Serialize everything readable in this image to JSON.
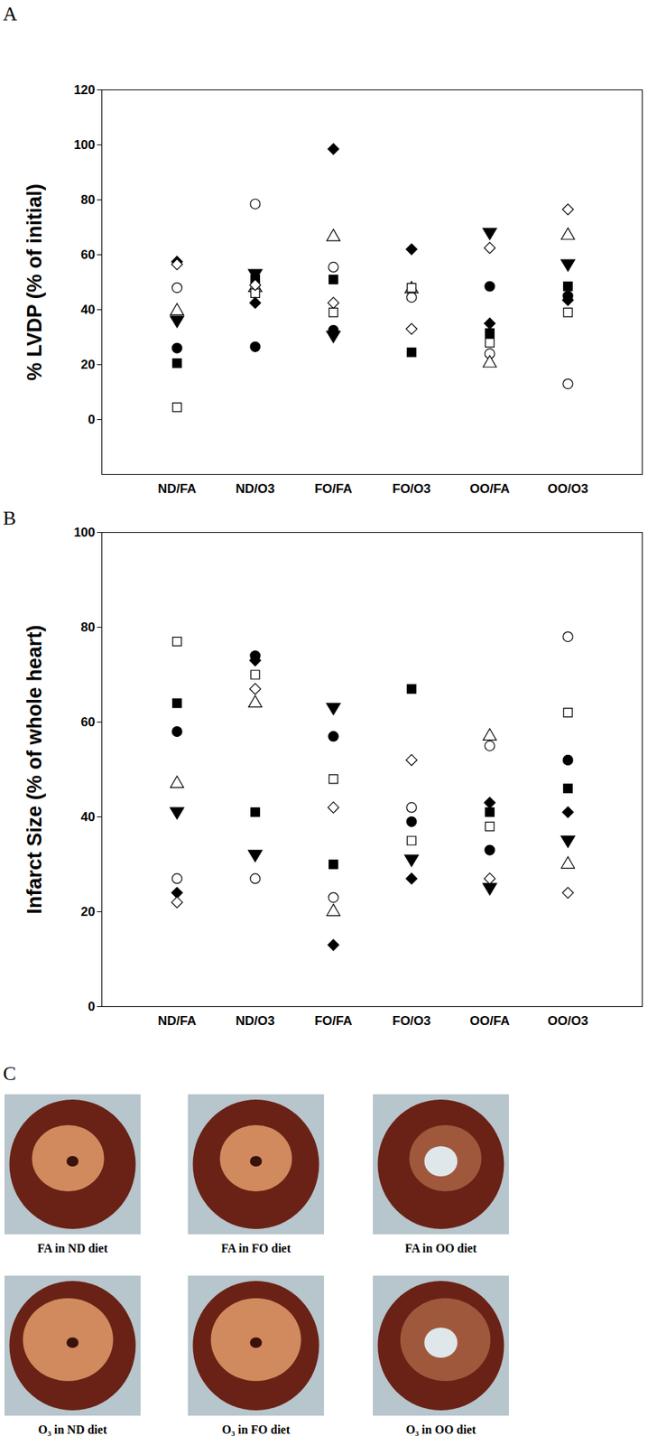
{
  "chart_data": [
    {
      "type": "scatter",
      "title": "A",
      "y_label": "% LVDP (% of initial)",
      "categories": [
        "ND/FA",
        "ND/O3",
        "FO/FA",
        "FO/O3",
        "OO/FA",
        "OO/O3"
      ],
      "ylim": [
        -20,
        120
      ],
      "yticks": [
        0,
        20,
        40,
        60,
        80,
        100,
        120
      ],
      "series": [
        {
          "marker": "filled circle",
          "color": "#000000",
          "values": [
            26,
            26.5,
            32.5,
            null,
            48.5,
            45
          ]
        },
        {
          "marker": "open circle",
          "color": "#000000",
          "values": [
            48,
            78.5,
            55.5,
            44.5,
            24,
            13
          ]
        },
        {
          "marker": "filled triangle-down",
          "color": "#000000",
          "values": [
            36,
            53,
            30.5,
            null,
            68,
            56.5
          ]
        },
        {
          "marker": "open triangle",
          "color": "#000000",
          "values": [
            39.5,
            48,
            66.5,
            47.5,
            20.5,
            67
          ]
        },
        {
          "marker": "filled square",
          "color": "#000000",
          "values": [
            20.5,
            51,
            51,
            24.5,
            31.5,
            48.5
          ]
        },
        {
          "marker": "open square",
          "color": "#000000",
          "values": [
            4.5,
            46,
            39,
            48,
            28,
            39
          ]
        },
        {
          "marker": "filled diamond",
          "color": "#000000",
          "values": [
            57.5,
            42.5,
            98.5,
            62,
            35,
            43.5
          ]
        },
        {
          "marker": "open diamond",
          "color": "#000000",
          "values": [
            56.5,
            49,
            42.5,
            33,
            62.5,
            76.5
          ]
        }
      ]
    },
    {
      "type": "scatter",
      "title": "B",
      "y_label": "Infarct Size (% of whole heart)",
      "categories": [
        "ND/FA",
        "ND/O3",
        "FO/FA",
        "FO/O3",
        "OO/FA",
        "OO/O3"
      ],
      "ylim": [
        0,
        100
      ],
      "yticks": [
        0,
        20,
        40,
        60,
        80,
        100
      ],
      "series": [
        {
          "marker": "filled circle",
          "color": "#000000",
          "values": [
            58,
            74,
            57,
            39,
            33,
            52
          ]
        },
        {
          "marker": "open circle",
          "color": "#000000",
          "values": [
            27,
            27,
            23,
            42,
            55,
            78
          ]
        },
        {
          "marker": "filled triangle-down",
          "color": "#000000",
          "values": [
            41,
            32,
            63,
            31,
            25,
            35
          ]
        },
        {
          "marker": "open triangle",
          "color": "#000000",
          "values": [
            47,
            64,
            20,
            null,
            57,
            30
          ]
        },
        {
          "marker": "filled square",
          "color": "#000000",
          "values": [
            64,
            41,
            30,
            67,
            41,
            46
          ]
        },
        {
          "marker": "open square",
          "color": "#000000",
          "values": [
            77,
            70,
            48,
            35,
            38,
            62
          ]
        },
        {
          "marker": "filled diamond",
          "color": "#000000",
          "values": [
            24,
            73,
            13,
            27,
            43,
            41
          ]
        },
        {
          "marker": "open diamond",
          "color": "#000000",
          "values": [
            22,
            67,
            42,
            52,
            27,
            24
          ]
        }
      ]
    }
  ],
  "panel_c": {
    "label": "C",
    "images": [
      {
        "caption": "FA in ND diet"
      },
      {
        "caption": "FA in FO diet"
      },
      {
        "caption": "FA in OO diet"
      },
      {
        "caption": "O₃ in ND diet"
      },
      {
        "caption": "O₃ in FO diet"
      },
      {
        "caption": "O₃ in OO diet"
      }
    ]
  }
}
